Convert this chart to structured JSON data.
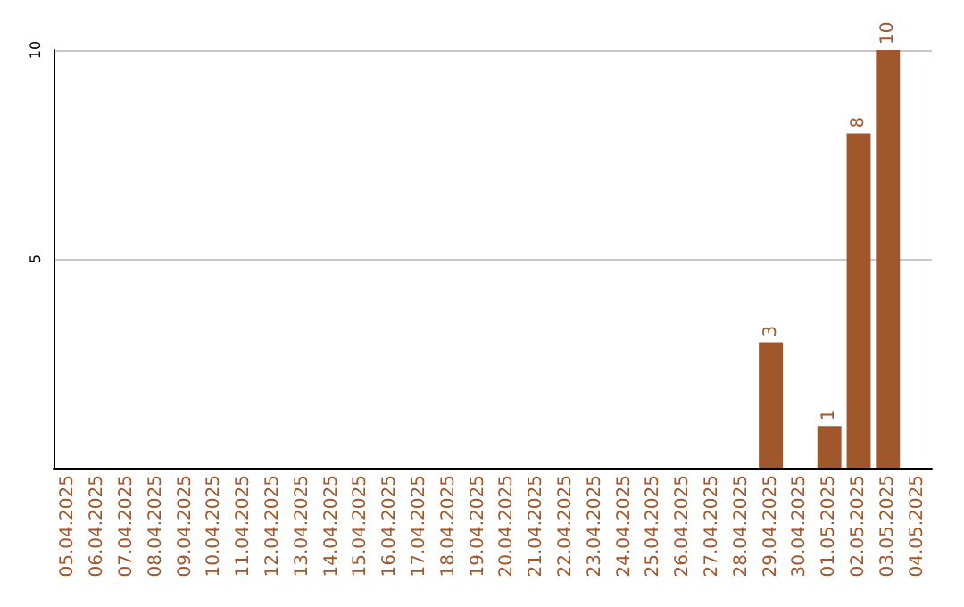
{
  "chart_data": {
    "type": "bar",
    "categories": [
      "05.04.2025",
      "06.04.2025",
      "07.04.2025",
      "08.04.2025",
      "09.04.2025",
      "10.04.2025",
      "11.04.2025",
      "12.04.2025",
      "13.04.2025",
      "14.04.2025",
      "15.04.2025",
      "16.04.2025",
      "17.04.2025",
      "18.04.2025",
      "19.04.2025",
      "20.04.2025",
      "21.04.2025",
      "22.04.2025",
      "23.04.2025",
      "24.04.2025",
      "25.04.2025",
      "26.04.2025",
      "27.04.2025",
      "28.04.2025",
      "29.04.2025",
      "30.04.2025",
      "01.05.2025",
      "02.05.2025",
      "03.05.2025",
      "04.05.2025"
    ],
    "values": [
      0,
      0,
      0,
      0,
      0,
      0,
      0,
      0,
      0,
      0,
      0,
      0,
      0,
      0,
      0,
      0,
      0,
      0,
      0,
      0,
      0,
      0,
      0,
      0,
      3,
      0,
      1,
      8,
      10,
      0
    ],
    "value_labels": [
      null,
      null,
      null,
      null,
      null,
      null,
      null,
      null,
      null,
      null,
      null,
      null,
      null,
      null,
      null,
      null,
      null,
      null,
      null,
      null,
      null,
      null,
      null,
      null,
      "3",
      null,
      "1",
      "8",
      "10",
      null
    ],
    "color": "#a0572b",
    "ylim": [
      0,
      10
    ],
    "yticks": [
      5,
      10
    ],
    "grid": "y"
  }
}
